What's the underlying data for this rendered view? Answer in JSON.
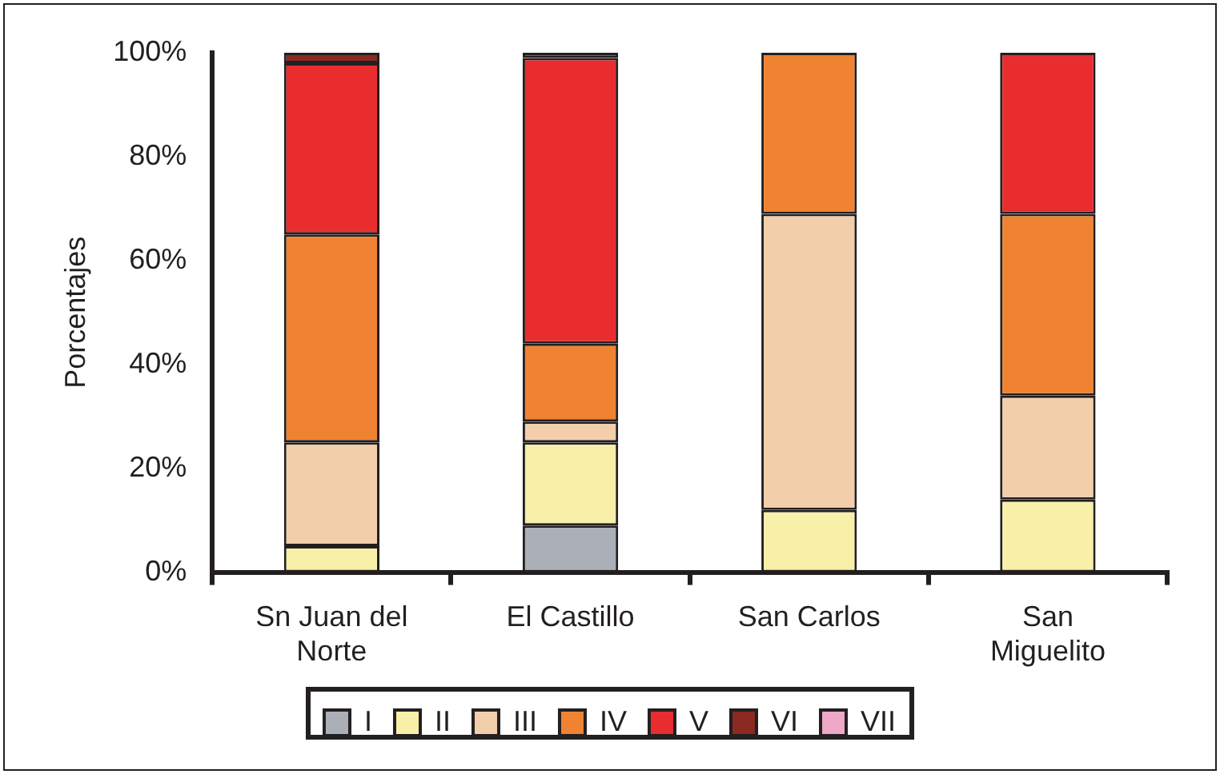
{
  "chart_data": {
    "type": "bar",
    "stacked": true,
    "ylabel": "Porcentajes",
    "categories": [
      "Sn Juan del Norte",
      "El Castillo",
      "San Carlos",
      "San Miguelito"
    ],
    "ylim": [
      0,
      100
    ],
    "yticks": [
      {
        "value": 0,
        "label": "0%"
      },
      {
        "value": 20,
        "label": "20%"
      },
      {
        "value": 40,
        "label": "40%"
      },
      {
        "value": 60,
        "label": "60%"
      },
      {
        "value": 80,
        "label": "80%"
      },
      {
        "value": 100,
        "label": "100%"
      }
    ],
    "grid": false,
    "legend": "bottom",
    "series": [
      {
        "name": "I",
        "color": "#abb0b8",
        "values": [
          0,
          9,
          0,
          0
        ]
      },
      {
        "name": "II",
        "color": "#f8f0a8",
        "values": [
          5,
          16,
          12,
          14
        ]
      },
      {
        "name": "III",
        "color": "#f2cfaa",
        "values": [
          20,
          4,
          57,
          20
        ]
      },
      {
        "name": "IV",
        "color": "#ef8332",
        "values": [
          40,
          15,
          31,
          35
        ]
      },
      {
        "name": "V",
        "color": "#e92d2f",
        "values": [
          33,
          55,
          0,
          31
        ]
      },
      {
        "name": "VI",
        "color": "#8a2a22",
        "values": [
          2,
          1,
          0,
          0
        ]
      },
      {
        "name": "VII",
        "color": "#f0a8c8",
        "values": [
          null,
          null,
          null,
          null
        ]
      }
    ]
  }
}
